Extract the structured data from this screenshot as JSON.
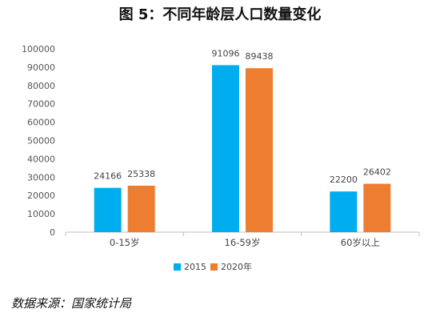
{
  "title": "图 5：不同年龄层人口数量变化",
  "source": "数据来源：国家统计局",
  "colors": {
    "s2015": "#00AEEF",
    "s2020": "#ED7D31",
    "axis": "#BFBFBF"
  },
  "chart_data": {
    "type": "bar",
    "title": "图 5：不同年龄层人口数量变化",
    "categories": [
      "0-15岁",
      "16-59岁",
      "60岁以上"
    ],
    "series": [
      {
        "name": "2015",
        "values": [
          24166,
          91096,
          22200
        ]
      },
      {
        "name": "2020年",
        "values": [
          25338,
          89438,
          26402
        ]
      }
    ],
    "ylim": [
      0,
      100000
    ],
    "yticks": [
      "0",
      "10000",
      "20000",
      "30000",
      "40000",
      "50000",
      "60000",
      "70000",
      "80000",
      "90000",
      "100000"
    ],
    "grid": false,
    "legend": "bottom"
  }
}
